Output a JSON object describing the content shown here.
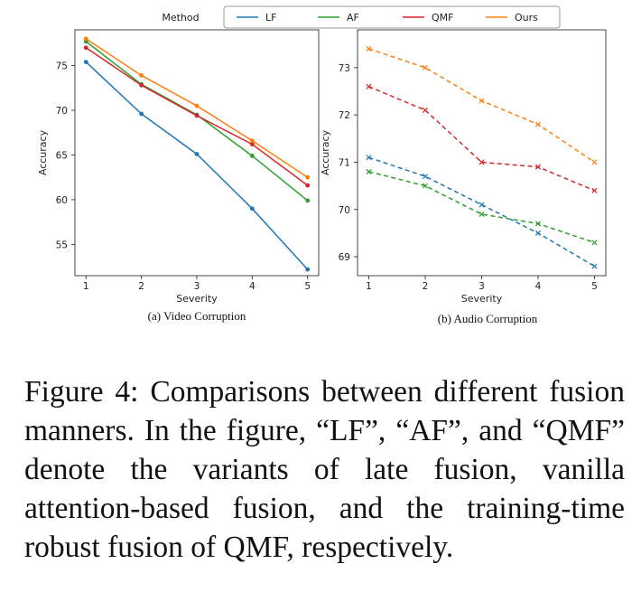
{
  "legend": {
    "title": "Method",
    "entries": [
      {
        "name": "LF",
        "color": "#1f77b4"
      },
      {
        "name": "AF",
        "color": "#2ca02c"
      },
      {
        "name": "QMF",
        "color": "#d62728"
      },
      {
        "name": "Ours",
        "color": "#ff7f0e"
      }
    ]
  },
  "chart_data": [
    {
      "type": "line",
      "caption": "(a) Video Corruption",
      "xlabel": "Severity",
      "ylabel": "Accuracy",
      "x": [
        1,
        2,
        3,
        4,
        5
      ],
      "xticks": [
        "1",
        "2",
        "3",
        "4",
        "5"
      ],
      "yticks": [
        "55",
        "60",
        "65",
        "70",
        "75"
      ],
      "ylim": [
        51.5,
        79.0
      ],
      "grid": false,
      "series": [
        {
          "name": "LF",
          "color": "#1f77b4",
          "style": "solid",
          "marker": "dot",
          "values": [
            75.4,
            69.6,
            65.1,
            59.0,
            52.2
          ]
        },
        {
          "name": "AF",
          "color": "#2ca02c",
          "style": "solid",
          "marker": "dot",
          "values": [
            77.7,
            72.9,
            69.5,
            64.9,
            59.9
          ]
        },
        {
          "name": "QMF",
          "color": "#d62728",
          "style": "solid",
          "marker": "dot",
          "values": [
            77.0,
            72.8,
            69.4,
            66.2,
            61.6
          ]
        },
        {
          "name": "Ours",
          "color": "#ff7f0e",
          "style": "solid",
          "marker": "dot",
          "values": [
            78.0,
            73.9,
            70.5,
            66.6,
            62.5
          ]
        }
      ]
    },
    {
      "type": "line",
      "caption": "(b) Audio Corruption",
      "xlabel": "Severity",
      "ylabel": "Accuracy",
      "x": [
        1,
        2,
        3,
        4,
        5
      ],
      "xticks": [
        "1",
        "2",
        "3",
        "4",
        "5"
      ],
      "yticks": [
        "69",
        "70",
        "71",
        "72",
        "73"
      ],
      "ylim": [
        68.6,
        73.8
      ],
      "grid": false,
      "series": [
        {
          "name": "LF",
          "color": "#1f77b4",
          "style": "dashed",
          "marker": "x",
          "values": [
            71.1,
            70.7,
            70.1,
            69.5,
            68.8
          ]
        },
        {
          "name": "AF",
          "color": "#2ca02c",
          "style": "dashed",
          "marker": "x",
          "values": [
            70.8,
            70.5,
            69.9,
            69.7,
            69.3
          ]
        },
        {
          "name": "QMF",
          "color": "#d62728",
          "style": "dashed",
          "marker": "x",
          "values": [
            72.6,
            72.1,
            71.0,
            70.9,
            70.4
          ]
        },
        {
          "name": "Ours",
          "color": "#ff7f0e",
          "style": "dashed",
          "marker": "x",
          "values": [
            73.4,
            73.0,
            72.3,
            71.8,
            71.0
          ]
        }
      ]
    }
  ],
  "caption": "Figure 4: Comparisons between different fusion manners. In the figure, “LF”, “AF”, and “QMF” denote the variants of late fusion, vanilla attention-based fusion, and the training-time robust fusion of QMF, respectively."
}
